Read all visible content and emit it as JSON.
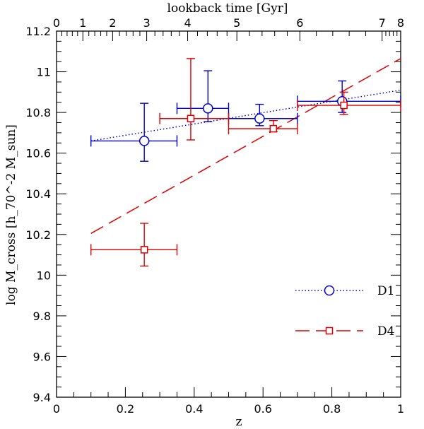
{
  "chart_data": {
    "type": "scatter",
    "xlabel": "z",
    "ylabel": "log M_cross [h_70^-2 M_sun]",
    "top_axis_label": "lookback time [Gyr]",
    "xlim": [
      0,
      1.0
    ],
    "ylim": [
      9.4,
      11.2
    ],
    "x_ticks": [
      "0",
      "0.2",
      "0.4",
      "0.6",
      "0.8",
      "1"
    ],
    "y_ticks": [
      "9.4",
      "9.6",
      "9.8",
      "10",
      "10.2",
      "10.4",
      "10.6",
      "10.8",
      "11",
      "11.2"
    ],
    "top_ticks": [
      {
        "label": "0",
        "z": 0.0
      },
      {
        "label": "1",
        "z": 0.0765
      },
      {
        "label": "2",
        "z": 0.163
      },
      {
        "label": "3",
        "z": 0.262
      },
      {
        "label": "4",
        "z": 0.381
      },
      {
        "label": "5",
        "z": 0.524
      },
      {
        "label": "6",
        "z": 0.707
      },
      {
        "label": "7",
        "z": 0.946
      },
      {
        "label": "8",
        "z": 1.0
      }
    ],
    "series": [
      {
        "name": "D1",
        "color": "#0000cc",
        "marker": "circle",
        "line_style": "dotted",
        "points": [
          {
            "x": 0.255,
            "y": 10.66,
            "xerr_low": 0.1,
            "xerr_high": 0.35,
            "yerr_low": 10.56,
            "yerr_high": 10.845
          },
          {
            "x": 0.44,
            "y": 10.82,
            "xerr_low": 0.35,
            "xerr_high": 0.5,
            "yerr_low": 10.755,
            "yerr_high": 11.005
          },
          {
            "x": 0.59,
            "y": 10.77,
            "xerr_low": 0.5,
            "xerr_high": 0.7,
            "yerr_low": 10.735,
            "yerr_high": 10.84
          },
          {
            "x": 0.83,
            "y": 10.855,
            "xerr_low": 0.7,
            "xerr_high": 1.0,
            "yerr_low": 10.8,
            "yerr_high": 10.955
          }
        ],
        "fit": [
          [
            0.1,
            10.66
          ],
          [
            1.0,
            10.91
          ]
        ]
      },
      {
        "name": "D4",
        "color": "#dd0000",
        "marker": "square",
        "line_style": "dashed",
        "points": [
          {
            "x": 0.255,
            "y": 10.125,
            "xerr_low": 0.1,
            "xerr_high": 0.35,
            "yerr_low": 10.045,
            "yerr_high": 10.255
          },
          {
            "x": 0.39,
            "y": 10.77,
            "xerr_low": 0.3,
            "xerr_high": 0.5,
            "yerr_low": 10.665,
            "yerr_high": 11.065
          },
          {
            "x": 0.63,
            "y": 10.72,
            "xerr_low": 0.5,
            "xerr_high": 0.7,
            "yerr_low": 10.705,
            "yerr_high": 10.76
          },
          {
            "x": 0.835,
            "y": 10.835,
            "xerr_low": 0.7,
            "xerr_high": 1.0,
            "yerr_low": 10.79,
            "yerr_high": 10.9
          }
        ],
        "fit": [
          [
            0.1,
            10.205
          ],
          [
            1.0,
            11.065
          ]
        ]
      }
    ],
    "legend": [
      {
        "name": "D1",
        "label": "D1"
      },
      {
        "name": "D4",
        "label": "D4"
      }
    ],
    "legend_position": "bottom-right"
  }
}
